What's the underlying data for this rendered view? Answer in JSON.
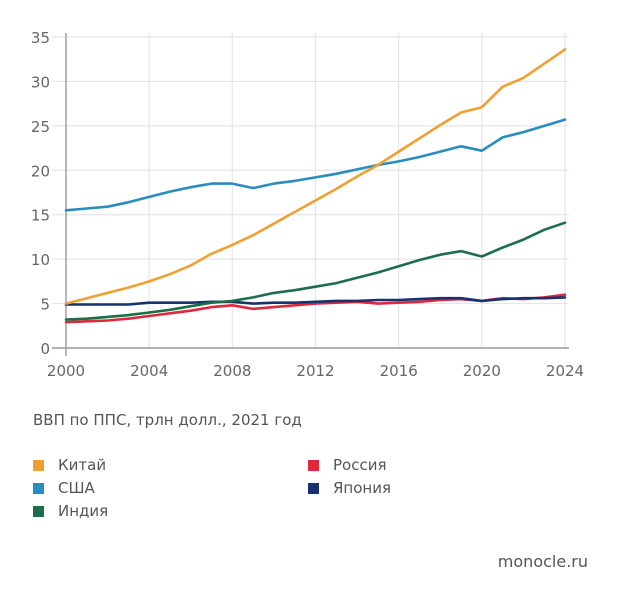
{
  "chart_data": {
    "type": "line",
    "title": "",
    "caption": "ВВП по ППС, трлн долл., 2021 год",
    "xlabel": "",
    "ylabel": "",
    "x": [
      2000,
      2001,
      2002,
      2003,
      2004,
      2005,
      2006,
      2007,
      2008,
      2009,
      2010,
      2011,
      2012,
      2013,
      2014,
      2015,
      2016,
      2017,
      2018,
      2019,
      2020,
      2021,
      2022,
      2023,
      2024
    ],
    "xlim": [
      2000,
      2024
    ],
    "ylim": [
      0,
      35
    ],
    "xticks": [
      2000,
      2004,
      2008,
      2012,
      2016,
      2020,
      2024
    ],
    "yticks": [
      0,
      5,
      10,
      15,
      20,
      25,
      30,
      35
    ],
    "grid": true,
    "legend_position": "bottom-left",
    "series": [
      {
        "name": "Китай",
        "color": "#f0a030",
        "values": [
          5.0,
          5.6,
          6.2,
          6.8,
          7.5,
          8.3,
          9.3,
          10.6,
          11.6,
          12.7,
          14.0,
          15.3,
          16.6,
          17.9,
          19.3,
          20.6,
          22.1,
          23.6,
          25.1,
          26.5,
          27.1,
          29.4,
          30.4,
          32.0,
          33.6
        ]
      },
      {
        "name": "США",
        "color": "#2a8cbf",
        "values": [
          15.5,
          15.7,
          15.9,
          16.4,
          17.0,
          17.6,
          18.1,
          18.5,
          18.5,
          18.0,
          18.5,
          18.8,
          19.2,
          19.6,
          20.1,
          20.6,
          21.0,
          21.5,
          22.1,
          22.7,
          22.2,
          23.7,
          24.3,
          25.0,
          25.7
        ]
      },
      {
        "name": "Индия",
        "color": "#1a6e4a",
        "values": [
          3.2,
          3.3,
          3.5,
          3.7,
          4.0,
          4.3,
          4.7,
          5.1,
          5.3,
          5.7,
          6.2,
          6.5,
          6.9,
          7.3,
          7.9,
          8.5,
          9.2,
          9.9,
          10.5,
          10.9,
          10.3,
          11.3,
          12.2,
          13.3,
          14.1
        ]
      },
      {
        "name": "Россия",
        "color": "#e0283c",
        "values": [
          2.9,
          3.0,
          3.1,
          3.3,
          3.6,
          3.9,
          4.2,
          4.6,
          4.8,
          4.4,
          4.6,
          4.8,
          5.0,
          5.1,
          5.2,
          5.0,
          5.1,
          5.2,
          5.4,
          5.5,
          5.3,
          5.6,
          5.5,
          5.7,
          6.0
        ]
      },
      {
        "name": "Япония",
        "color": "#17336e",
        "values": [
          4.9,
          4.9,
          4.9,
          4.9,
          5.1,
          5.1,
          5.1,
          5.2,
          5.2,
          5.0,
          5.1,
          5.1,
          5.2,
          5.3,
          5.3,
          5.4,
          5.4,
          5.5,
          5.6,
          5.6,
          5.3,
          5.5,
          5.6,
          5.6,
          5.7
        ]
      }
    ]
  },
  "legend": [
    {
      "label": "Китай",
      "color": "#f0a030"
    },
    {
      "label": "США",
      "color": "#2a8cbf"
    },
    {
      "label": "Индия",
      "color": "#1a6e4a"
    },
    {
      "label": "Россия",
      "color": "#e0283c"
    },
    {
      "label": "Япония",
      "color": "#17336e"
    }
  ],
  "source": "monocle.ru"
}
